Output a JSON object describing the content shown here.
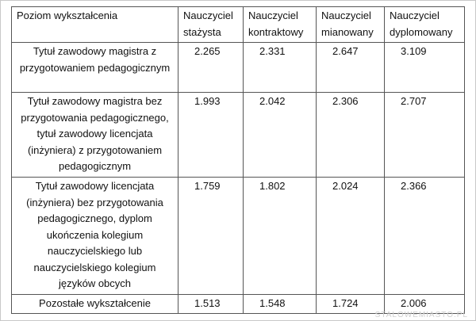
{
  "table": {
    "header": [
      "Poziom wykształcenia",
      "Nauczyciel stażysta",
      "Nauczyciel kontraktowy",
      "Nauczyciel mianowany",
      "Nauczyciel dyplomowany"
    ],
    "rows": [
      [
        "Tytuł zawodowy magistra z przygotowaniem pedagogicznym",
        "2.265",
        "2.331",
        "2.647",
        "3.109"
      ],
      [
        "Tytuł zawodowy magistra bez przygotowania pedagogicznego, tytuł zawodowy licencjata (inżyniera) z przygotowaniem pedagogicznym",
        "1.993",
        "2.042",
        "2.306",
        "2.707"
      ],
      [
        "Tytuł zawodowy licencjata (inżyniera) bez przygotowania pedagogicznego, dyplom ukończenia kolegium nauczycielskiego lub nauczycielskiego kolegium języków obcych",
        "1.759",
        "1.802",
        "2.024",
        "2.366"
      ],
      [
        "Pozostałe wykształcenie",
        "1.513",
        "1.548",
        "1.724",
        "2.006"
      ]
    ]
  },
  "watermark": "STALOWEMIASTO.PL"
}
